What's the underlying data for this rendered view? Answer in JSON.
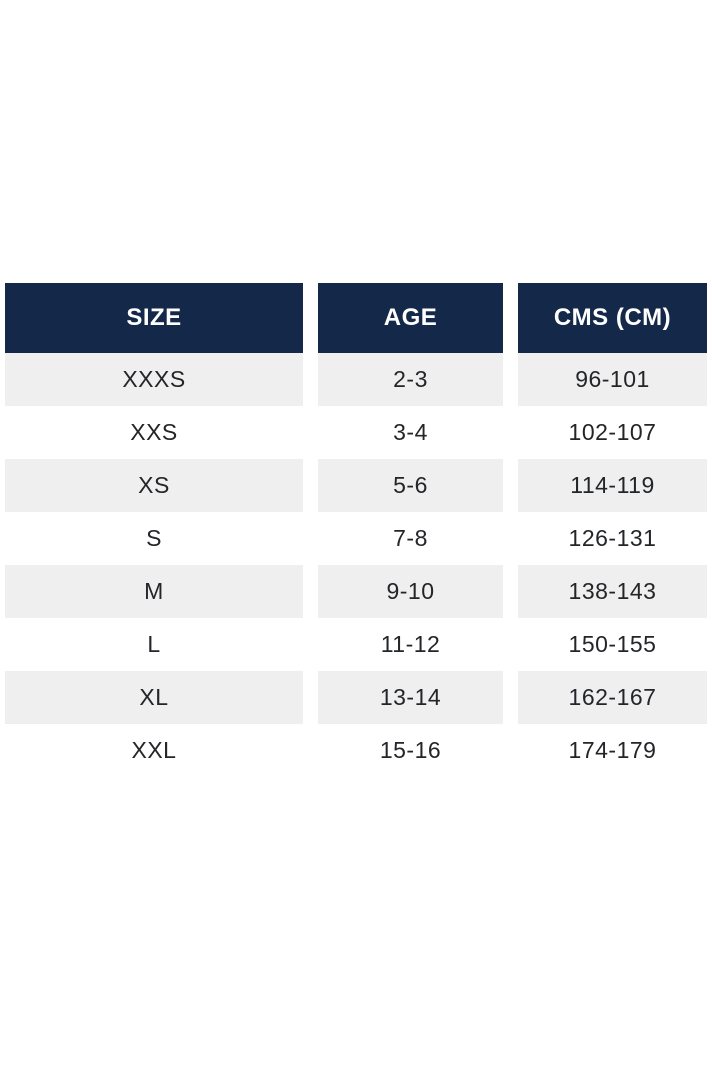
{
  "chart_data": {
    "type": "table",
    "columns": [
      "SIZE",
      "AGE",
      "CMS (CM)"
    ],
    "rows": [
      [
        "XXXS",
        "2-3",
        "96-101"
      ],
      [
        "XXS",
        "3-4",
        "102-107"
      ],
      [
        "XS",
        "5-6",
        "114-119"
      ],
      [
        "S",
        "7-8",
        "126-131"
      ],
      [
        "M",
        "9-10",
        "138-143"
      ],
      [
        "L",
        "11-12",
        "150-155"
      ],
      [
        "XL",
        "13-14",
        "162-167"
      ],
      [
        "XXL",
        "15-16",
        "174-179"
      ]
    ],
    "layout": {
      "alternating_rows_start": "gray",
      "header_position": "top"
    }
  },
  "colors": {
    "page_bg": "#ffffff",
    "header_bg": "#14294a",
    "header_text": "#ffffff",
    "row_alt_bg": "#efefef",
    "row_bg": "#ffffff",
    "row_text": "#232528"
  }
}
